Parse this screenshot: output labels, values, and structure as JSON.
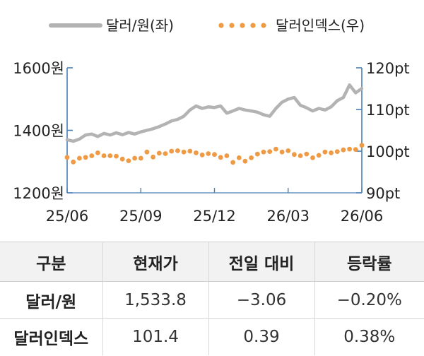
{
  "chart_data": {
    "type": "line",
    "legend": {
      "placement": "top",
      "entries": [
        "달러/원(좌)",
        "달러인덱스(우)"
      ]
    },
    "left_axis": {
      "ticks": [
        "1600원",
        "1400원",
        "1200원"
      ],
      "tick_values": [
        1600,
        1400,
        1200
      ],
      "range": [
        1200,
        1600
      ]
    },
    "right_axis": {
      "ticks": [
        "120pt",
        "110pt",
        "100pt",
        "90pt"
      ],
      "tick_values": [
        120,
        110,
        100,
        90
      ],
      "range": [
        90,
        120
      ]
    },
    "x_ticks": [
      "25/06",
      "25/09",
      "25/12",
      "26/03",
      "26/06"
    ],
    "x_range": [
      0,
      12
    ],
    "series": [
      {
        "name": "달러/원(좌)",
        "axis": "left",
        "color": "#b3b3b3",
        "style": "solid",
        "x": [
          0,
          0.25,
          0.5,
          0.75,
          1.0,
          1.25,
          1.5,
          1.75,
          2.0,
          2.25,
          2.5,
          2.75,
          3.0,
          3.25,
          3.5,
          3.75,
          4.0,
          4.25,
          4.5,
          4.75,
          5.0,
          5.25,
          5.5,
          5.75,
          6.0,
          6.25,
          6.5,
          6.75,
          7.0,
          7.25,
          7.5,
          7.75,
          8.0,
          8.25,
          8.5,
          8.75,
          9.0,
          9.25,
          9.5,
          9.75,
          10.0,
          10.25,
          10.5,
          10.75,
          11.0,
          11.25,
          11.5,
          11.75,
          12.0
        ],
        "values": [
          1370,
          1365,
          1372,
          1385,
          1388,
          1380,
          1390,
          1385,
          1392,
          1386,
          1393,
          1388,
          1395,
          1400,
          1405,
          1412,
          1420,
          1430,
          1435,
          1445,
          1465,
          1478,
          1470,
          1475,
          1473,
          1478,
          1455,
          1462,
          1470,
          1465,
          1462,
          1458,
          1450,
          1445,
          1470,
          1490,
          1500,
          1505,
          1480,
          1472,
          1462,
          1470,
          1465,
          1475,
          1495,
          1505,
          1545,
          1520,
          1533.8
        ]
      },
      {
        "name": "달러인덱스(우)",
        "axis": "right",
        "color": "#ef9a45",
        "style": "dotted",
        "x": [
          0,
          0.25,
          0.5,
          0.75,
          1.0,
          1.25,
          1.5,
          1.75,
          2.0,
          2.25,
          2.5,
          2.75,
          3.0,
          3.25,
          3.5,
          3.75,
          4.0,
          4.25,
          4.5,
          4.75,
          5.0,
          5.25,
          5.5,
          5.75,
          6.0,
          6.25,
          6.5,
          6.75,
          7.0,
          7.25,
          7.5,
          7.75,
          8.0,
          8.25,
          8.5,
          8.75,
          9.0,
          9.25,
          9.5,
          9.75,
          10.0,
          10.25,
          10.5,
          10.75,
          11.0,
          11.25,
          11.5,
          11.75,
          12.0
        ],
        "values": [
          98.5,
          97.4,
          98.3,
          98.5,
          98.9,
          99.6,
          98.9,
          98.9,
          98.8,
          98.1,
          97.7,
          98.3,
          98.3,
          99.8,
          98.6,
          99.5,
          99.4,
          100.0,
          100.1,
          99.8,
          100.0,
          99.6,
          99.1,
          99.4,
          99.2,
          98.5,
          98.9,
          97.3,
          98.4,
          97.6,
          98.4,
          99.3,
          99.8,
          99.9,
          100.5,
          99.8,
          100.1,
          99.2,
          98.9,
          99.3,
          98.4,
          99.0,
          99.8,
          99.6,
          99.9,
          100.3,
          100.5,
          100.4,
          101.4
        ]
      }
    ]
  },
  "table": {
    "headers": [
      "구분",
      "현재가",
      "전일 대비",
      "등락률"
    ],
    "rows": [
      {
        "label": "달러/원",
        "values": [
          "1,533.8",
          "−3.06",
          "−0.20%"
        ]
      },
      {
        "label": "달러인덱스",
        "values": [
          "101.4",
          "0.39",
          "0.38%"
        ]
      }
    ]
  }
}
